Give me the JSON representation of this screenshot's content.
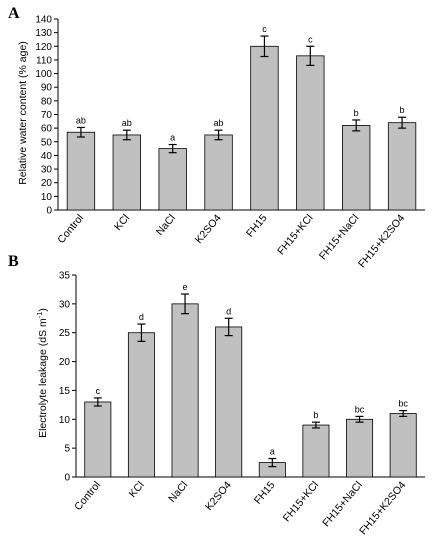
{
  "chart_data": [
    {
      "panel": "A",
      "type": "bar",
      "ylabel": "Relative water content (% age)",
      "ylim": [
        0,
        140
      ],
      "ytick_step": 10,
      "categories": [
        "Control",
        "KCl",
        "NaCl",
        "K2SO4",
        "FH15",
        "FH15+KCl",
        "FH15+NaCl",
        "FH15+K2SO4"
      ],
      "values": [
        57,
        55,
        45,
        55,
        120,
        113,
        62,
        64
      ],
      "errors": [
        3.5,
        3.5,
        3,
        3.5,
        7.5,
        7,
        4,
        4
      ],
      "significance": [
        "ab",
        "ab",
        "a",
        "ab",
        "c",
        "c",
        "b",
        "b"
      ],
      "grid": false,
      "bar_color": "#c0c0c0"
    },
    {
      "panel": "B",
      "type": "bar",
      "ylabel": "Electrolyte leakage (dS m",
      "ylabel_sup": "-1",
      "ylabel_end": ")",
      "ylim": [
        0,
        35
      ],
      "ytick_step": 5,
      "categories": [
        "Control",
        "KCl",
        "NaCl",
        "K2SO4",
        "FH15",
        "FH15+KCl",
        "FH15+NaCl",
        "FH15+K2SO4"
      ],
      "values": [
        13,
        25,
        30,
        26,
        2.5,
        9,
        10,
        11
      ],
      "errors": [
        0.7,
        1.5,
        1.7,
        1.5,
        0.7,
        0.5,
        0.5,
        0.5
      ],
      "significance": [
        "c",
        "d",
        "e",
        "d",
        "a",
        "b",
        "bc",
        "bc"
      ],
      "grid": false,
      "bar_color": "#c0c0c0"
    }
  ]
}
